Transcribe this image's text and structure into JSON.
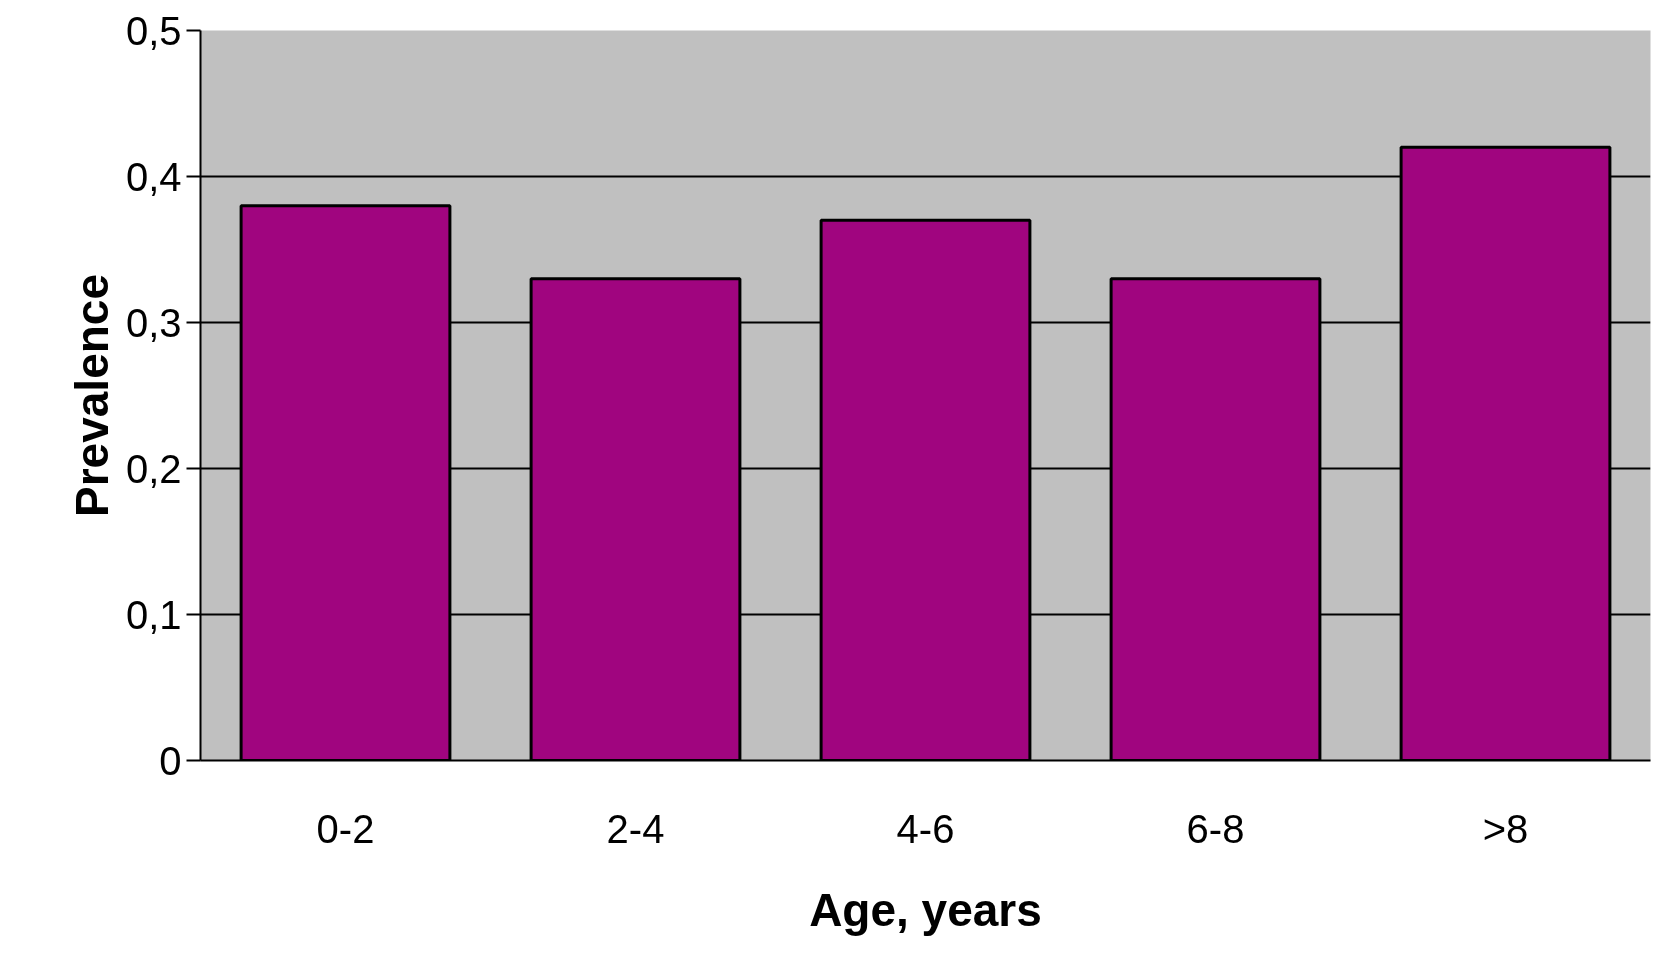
{
  "chart_data": {
    "type": "bar",
    "xlabel": "Age, years",
    "ylabel": "Prevalence",
    "categories": [
      "0-2",
      "2-4",
      "4-6",
      "6-8",
      ">8"
    ],
    "values": [
      0.38,
      0.33,
      0.37,
      0.33,
      0.42
    ],
    "color": "#a0057f",
    "ylim": [
      0,
      0.5
    ],
    "yticks": [
      0,
      {
        "value": 0.1,
        "label": "0,1"
      },
      {
        "value": 0.2,
        "label": "0,2"
      },
      {
        "value": 0.3,
        "label": "0,3"
      },
      {
        "value": 0.4,
        "label": "0,4"
      },
      {
        "value": 0.5,
        "label": "0,5"
      }
    ],
    "grid": "y"
  }
}
